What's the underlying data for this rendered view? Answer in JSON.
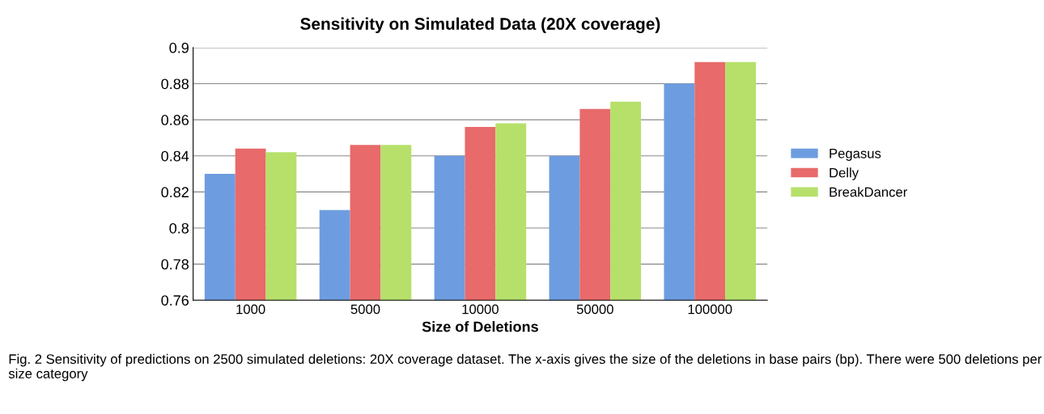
{
  "chart_data": {
    "type": "bar",
    "title": "Sensitivity on Simulated Data (20X coverage)",
    "xlabel": "Size of Deletions",
    "categories": [
      "1000",
      "5000",
      "10000",
      "50000",
      "100000"
    ],
    "series": [
      {
        "name": "Pegasus",
        "color": "#6d9de0",
        "values": [
          0.83,
          0.81,
          0.84,
          0.84,
          0.88
        ]
      },
      {
        "name": "Delly",
        "color": "#e86a6a",
        "values": [
          0.844,
          0.846,
          0.856,
          0.866,
          0.892
        ]
      },
      {
        "name": "BreakDancer",
        "color": "#b6e06a",
        "values": [
          0.842,
          0.846,
          0.858,
          0.87,
          0.892
        ]
      }
    ],
    "ylim": [
      0.76,
      0.9
    ],
    "yticks": [
      0.76,
      0.78,
      0.8,
      0.82,
      0.84,
      0.86,
      0.88,
      0.9
    ],
    "grid": "y",
    "legend": "right",
    "annotations": [
      "Fig. 2 Sensitivity of predictions on 2500 simulated deletions: 20X coverage dataset. The x-axis gives the size of the deletions in base pairs (bp). There were 500 deletions per size category"
    ]
  }
}
